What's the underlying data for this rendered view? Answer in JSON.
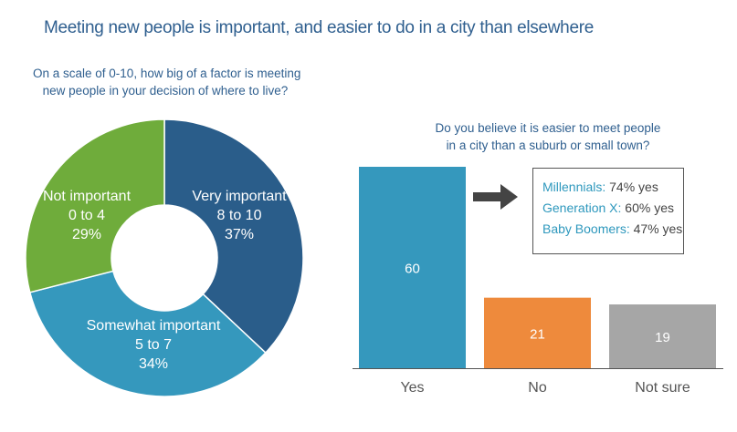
{
  "title": "Meeting new people is important, and easier to do in a city than elsewhere",
  "colors": {
    "title": "#2f5f8f",
    "very_important": "#2a5d8a",
    "somewhat_important": "#3598bd",
    "not_important": "#6fac3b",
    "yes": "#3598bd",
    "no": "#ee8a3c",
    "not_sure": "#a6a6a6"
  },
  "callout": {
    "lines": [
      {
        "key": "Millennials:",
        "value": "74% yes"
      },
      {
        "key": "Generation X:",
        "value": "60% yes"
      },
      {
        "key": "Baby Boomers:",
        "value": "47% yes"
      }
    ]
  },
  "chart_data": [
    {
      "type": "pie",
      "donut": true,
      "question": [
        "On a scale of 0-10, how big of a factor is meeting",
        "new people in your decision of where to live?"
      ],
      "slices": [
        {
          "name": "Very important",
          "range": "8 to 10",
          "label": "37%",
          "value": 37,
          "color": "#2a5d8a"
        },
        {
          "name": "Somewhat important",
          "range": "5 to 7",
          "label": "34%",
          "value": 34,
          "color": "#3598bd"
        },
        {
          "name": "Not important",
          "range": "0 to 4",
          "label": "29%",
          "value": 29,
          "color": "#6fac3b"
        }
      ]
    },
    {
      "type": "bar",
      "question": [
        "Do you believe it is easier to meet people",
        "in a city than a suburb or small town?"
      ],
      "categories": [
        "Yes",
        "No",
        "Not sure"
      ],
      "values": [
        60,
        21,
        19
      ],
      "colors": [
        "#3598bd",
        "#ee8a3c",
        "#a6a6a6"
      ],
      "ylim": [
        0,
        60
      ],
      "grid": false
    }
  ]
}
